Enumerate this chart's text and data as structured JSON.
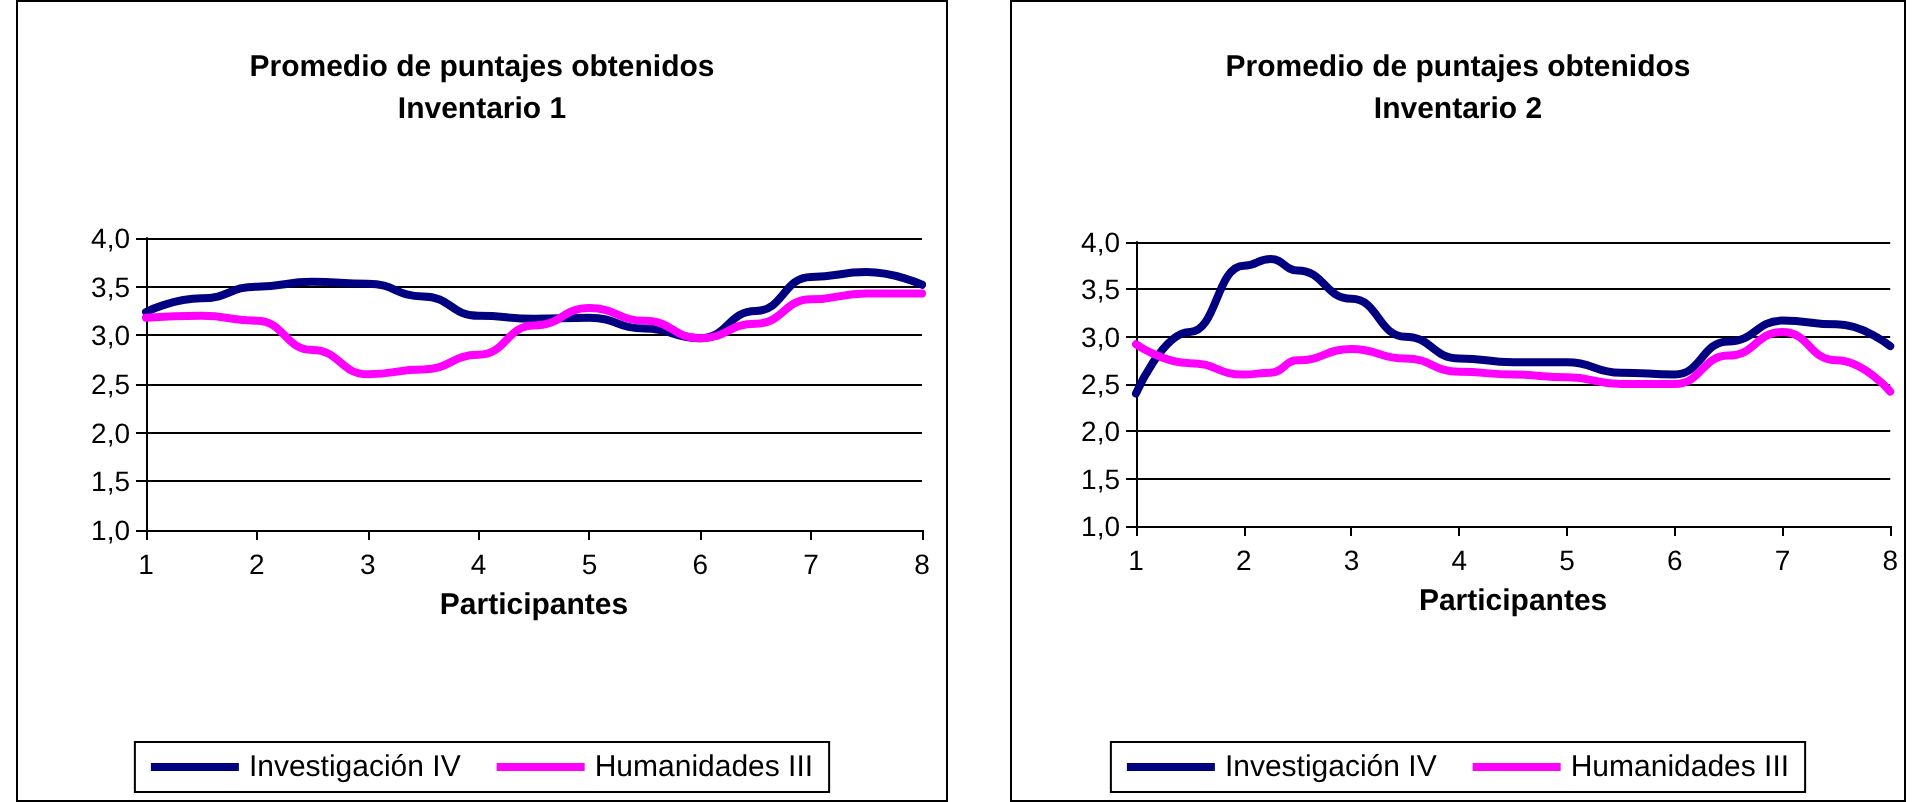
{
  "chart_data": [
    {
      "type": "line",
      "title": "Promedio de puntajes obtenidos",
      "subtitle": "Inventario 1",
      "xlabel": "Participantes",
      "x": [
        1,
        1.5,
        2,
        2.5,
        3,
        3.5,
        4,
        4.5,
        5,
        5.5,
        6,
        6.5,
        7,
        7.5,
        8
      ],
      "series": [
        {
          "name": "Investigación IV",
          "color": "#000080",
          "values": [
            3.24,
            3.38,
            3.5,
            3.55,
            3.53,
            3.4,
            3.2,
            3.17,
            3.18,
            3.07,
            2.97,
            3.25,
            3.6,
            3.65,
            3.52
          ]
        },
        {
          "name": "Humanidades III",
          "color": "#ff00ff",
          "values": [
            3.18,
            3.2,
            3.15,
            2.85,
            2.6,
            2.65,
            2.8,
            3.1,
            3.28,
            3.15,
            2.97,
            3.12,
            3.37,
            3.43,
            3.43
          ]
        }
      ],
      "xlim": [
        1,
        8
      ],
      "xticks": [
        1,
        2,
        3,
        4,
        5,
        6,
        7,
        8
      ],
      "ylim": [
        1,
        4
      ],
      "yticks": [
        {
          "value": 1,
          "label": "1,0"
        },
        {
          "value": 1.5,
          "label": "1,5"
        },
        {
          "value": 2,
          "label": "2,0"
        },
        {
          "value": 2.5,
          "label": "2,5"
        },
        {
          "value": 3,
          "label": "3,0"
        },
        {
          "value": 3.5,
          "label": "3,5"
        },
        {
          "value": 4,
          "label": "4,0"
        }
      ],
      "grid": "y",
      "legend": "bottom",
      "marker": "none",
      "line_style": "solid"
    },
    {
      "type": "line",
      "title": "Promedio de puntajes obtenidos",
      "subtitle": "Inventario 2",
      "xlabel": "Participantes",
      "x": [
        1,
        1.5,
        2,
        2.25,
        2.5,
        3,
        3.5,
        4,
        4.5,
        5,
        5.5,
        6,
        6.5,
        7,
        7.5,
        8
      ],
      "series": [
        {
          "name": "Investigación IV",
          "color": "#000080",
          "values": [
            2.4,
            3.05,
            3.75,
            3.82,
            3.7,
            3.4,
            3.0,
            2.77,
            2.73,
            2.73,
            2.62,
            2.6,
            2.95,
            3.17,
            3.13,
            2.9
          ]
        },
        {
          "name": "Humanidades III",
          "color": "#ff00ff",
          "values": [
            2.92,
            2.72,
            2.6,
            2.62,
            2.75,
            2.87,
            2.77,
            2.63,
            2.6,
            2.57,
            2.5,
            2.5,
            2.8,
            3.05,
            2.75,
            2.42
          ]
        }
      ],
      "xlim": [
        1,
        8
      ],
      "xticks": [
        1,
        2,
        3,
        4,
        5,
        6,
        7,
        8
      ],
      "ylim": [
        1,
        4
      ],
      "yticks": [
        {
          "value": 1,
          "label": "1,0"
        },
        {
          "value": 1.5,
          "label": "1,5"
        },
        {
          "value": 2,
          "label": "2,0"
        },
        {
          "value": 2.5,
          "label": "2,5"
        },
        {
          "value": 3,
          "label": "3,0"
        },
        {
          "value": 3.5,
          "label": "3,5"
        },
        {
          "value": 4,
          "label": "4,0"
        }
      ],
      "grid": "y",
      "legend": "bottom",
      "marker": "none",
      "line_style": "solid"
    }
  ]
}
